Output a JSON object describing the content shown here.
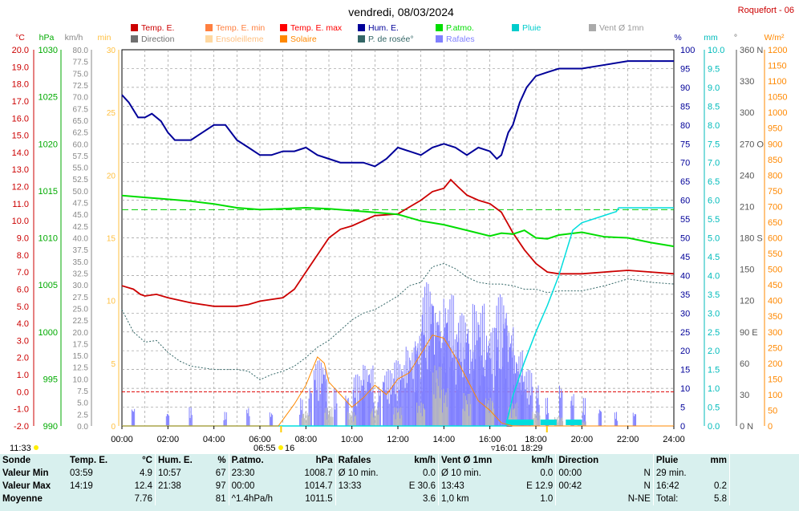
{
  "title": "vendredi, 08/03/2024",
  "station": "Roquefort - 06",
  "legend": [
    {
      "label": "Temp. E.",
      "color": "#cc0000"
    },
    {
      "label": "Temp. E. min",
      "color": "#ff8040"
    },
    {
      "label": "Temp. E. max",
      "color": "#ff0000"
    },
    {
      "label": "Hum. E.",
      "color": "#000099"
    },
    {
      "label": "P.atmo.",
      "color": "#00dd00"
    },
    {
      "label": "Pluie",
      "color": "#00cccc"
    },
    {
      "label": "Vent Ø 1mn",
      "color": "#aaaaaa"
    },
    {
      "label": "Direction",
      "color": "#707070"
    },
    {
      "label": "Ensoleilleme",
      "color": "#ffd8a0"
    },
    {
      "label": "Solaire",
      "color": "#ff8800"
    },
    {
      "label": "P. de rosée°",
      "color": "#336666"
    },
    {
      "label": "Rafales",
      "color": "#8080ff"
    }
  ],
  "axis_units": {
    "temp": "°C",
    "press": "hPa",
    "wind": "km/h",
    "min": "min",
    "hum": "%",
    "rain": "mm",
    "dir": "°",
    "solar": "W/m²"
  },
  "axes": {
    "temp_ticks": [
      "20.0",
      "19.0",
      "18.0",
      "17.0",
      "16.0",
      "15.0",
      "14.0",
      "13.0",
      "12.0",
      "11.0",
      "10.0",
      "9.0",
      "8.0",
      "7.0",
      "6.0",
      "5.0",
      "4.0",
      "3.0",
      "2.0",
      "1.0",
      "0.0",
      "-1.0",
      "-2.0"
    ],
    "press_ticks": [
      "1030",
      "1025",
      "1020",
      "1015",
      "1010",
      "1005",
      "1000",
      "995",
      "990"
    ],
    "wind_ticks": [
      "80.0",
      "77.5",
      "75.0",
      "72.5",
      "70.0",
      "67.5",
      "65.0",
      "62.5",
      "60.0",
      "57.5",
      "55.0",
      "52.5",
      "50.0",
      "47.5",
      "45.0",
      "42.5",
      "40.0",
      "37.5",
      "35.0",
      "32.5",
      "30.0",
      "27.5",
      "25.0",
      "22.5",
      "20.0",
      "17.5",
      "15.0",
      "12.5",
      "10.0",
      "7.5",
      "5.0",
      "2.5",
      "0.0"
    ],
    "min_ticks": [
      "30",
      "25",
      "20",
      "15",
      "10",
      "5",
      "0"
    ],
    "hum_ticks": [
      "100",
      "95",
      "90",
      "85",
      "80",
      "75",
      "70",
      "65",
      "60",
      "55",
      "50",
      "45",
      "40",
      "35",
      "30",
      "25",
      "20",
      "15",
      "10",
      "5",
      "0"
    ],
    "rain_ticks": [
      "10.0",
      "9.5",
      "9.0",
      "8.5",
      "8.0",
      "7.5",
      "7.0",
      "6.5",
      "6.0",
      "5.5",
      "5.0",
      "4.5",
      "4.0",
      "3.5",
      "3.0",
      "2.5",
      "2.0",
      "1.5",
      "1.0",
      "0.5",
      "0.0"
    ],
    "dir_ticks": [
      "360 N",
      "330",
      "300",
      "270 O",
      "240",
      "210",
      "180 S",
      "150",
      "120",
      "90 E",
      "60",
      "30",
      "0 N"
    ],
    "solar_ticks": [
      "1200",
      "1150",
      "1100",
      "1050",
      "1000",
      "950",
      "900",
      "850",
      "800",
      "750",
      "700",
      "650",
      "600",
      "550",
      "500",
      "450",
      "400",
      "350",
      "300",
      "250",
      "200",
      "150",
      "100",
      "50",
      "0"
    ],
    "x_ticks": [
      "00:00",
      "02:00",
      "04:00",
      "06:00",
      "08:00",
      "10:00",
      "12:00",
      "14:00",
      "16:00",
      "18:00",
      "20:00",
      "22:00",
      "24:00"
    ]
  },
  "sun_marks": {
    "moon": "11:33",
    "sunrise": "06:55",
    "sunrise_min": "16",
    "solar_noon": "16:01",
    "sunset": "18:29"
  },
  "chart_data": {
    "type": "line",
    "x_range_hours": [
      0,
      24
    ],
    "series": [
      {
        "name": "Temp. E.",
        "axis": "temp",
        "points": [
          [
            0,
            6.2
          ],
          [
            0.5,
            6.0
          ],
          [
            0.8,
            5.7
          ],
          [
            1,
            5.6
          ],
          [
            1.5,
            5.7
          ],
          [
            2,
            5.5
          ],
          [
            3,
            5.2
          ],
          [
            4,
            5.0
          ],
          [
            5,
            5.0
          ],
          [
            5.5,
            5.1
          ],
          [
            6,
            5.3
          ],
          [
            7,
            5.5
          ],
          [
            7.5,
            6.0
          ],
          [
            8,
            7.0
          ],
          [
            8.5,
            8.0
          ],
          [
            9,
            9.0
          ],
          [
            9.5,
            9.5
          ],
          [
            10,
            9.7
          ],
          [
            10.5,
            10.0
          ],
          [
            11,
            10.3
          ],
          [
            12,
            10.4
          ],
          [
            12.5,
            10.8
          ],
          [
            13,
            11.2
          ],
          [
            13.5,
            11.7
          ],
          [
            14,
            11.9
          ],
          [
            14.3,
            12.4
          ],
          [
            14.6,
            12.0
          ],
          [
            15,
            11.5
          ],
          [
            15.5,
            11.2
          ],
          [
            16,
            11.0
          ],
          [
            16.5,
            10.5
          ],
          [
            17,
            9.3
          ],
          [
            17.5,
            8.3
          ],
          [
            18,
            7.5
          ],
          [
            18.5,
            7.0
          ],
          [
            19,
            6.9
          ],
          [
            20,
            6.9
          ],
          [
            21,
            7.0
          ],
          [
            22,
            7.1
          ],
          [
            23,
            7.0
          ],
          [
            24,
            6.9
          ]
        ]
      },
      {
        "name": "Hum. E.",
        "axis": "hum",
        "points": [
          [
            0,
            88
          ],
          [
            0.3,
            86
          ],
          [
            0.7,
            82
          ],
          [
            1,
            82
          ],
          [
            1.3,
            83
          ],
          [
            1.7,
            81
          ],
          [
            2,
            78
          ],
          [
            2.3,
            76
          ],
          [
            3,
            76
          ],
          [
            3.5,
            78
          ],
          [
            4,
            80
          ],
          [
            4.5,
            80
          ],
          [
            5,
            76
          ],
          [
            5.5,
            74
          ],
          [
            6,
            72
          ],
          [
            6.5,
            72
          ],
          [
            7,
            73
          ],
          [
            7.5,
            73
          ],
          [
            8,
            74
          ],
          [
            8.5,
            72
          ],
          [
            9,
            71
          ],
          [
            9.5,
            70
          ],
          [
            10,
            70
          ],
          [
            10.5,
            70
          ],
          [
            11,
            69
          ],
          [
            11.5,
            71
          ],
          [
            12,
            74
          ],
          [
            12.5,
            73
          ],
          [
            13,
            72
          ],
          [
            13.5,
            74
          ],
          [
            14,
            75
          ],
          [
            14.5,
            74
          ],
          [
            15,
            72
          ],
          [
            15.5,
            74
          ],
          [
            16,
            73
          ],
          [
            16.3,
            71
          ],
          [
            16.5,
            72
          ],
          [
            16.8,
            78
          ],
          [
            17,
            80
          ],
          [
            17.3,
            86
          ],
          [
            17.6,
            90
          ],
          [
            18,
            93
          ],
          [
            18.5,
            94
          ],
          [
            19,
            95
          ],
          [
            20,
            95
          ],
          [
            21,
            96
          ],
          [
            22,
            97
          ],
          [
            23,
            97
          ],
          [
            24,
            97
          ]
        ]
      },
      {
        "name": "P.atmo.",
        "axis": "press",
        "points": [
          [
            0,
            1014.5
          ],
          [
            1,
            1014.3
          ],
          [
            2,
            1014.1
          ],
          [
            3,
            1013.9
          ],
          [
            4,
            1013.6
          ],
          [
            5,
            1013.2
          ],
          [
            6,
            1013.0
          ],
          [
            7,
            1013.1
          ],
          [
            8,
            1013.2
          ],
          [
            9,
            1013.1
          ],
          [
            10,
            1012.9
          ],
          [
            11,
            1012.7
          ],
          [
            12,
            1012.5
          ],
          [
            13,
            1011.8
          ],
          [
            14,
            1011.4
          ],
          [
            15,
            1010.8
          ],
          [
            16,
            1010.2
          ],
          [
            16.5,
            1010.5
          ],
          [
            17,
            1010.4
          ],
          [
            17.5,
            1010.8
          ],
          [
            18,
            1010.0
          ],
          [
            18.5,
            1009.9
          ],
          [
            19,
            1010.3
          ],
          [
            20,
            1010.6
          ],
          [
            21,
            1010.1
          ],
          [
            22,
            1010.0
          ],
          [
            23,
            1009.5
          ],
          [
            24,
            1009.1
          ]
        ]
      },
      {
        "name": "P. de rosée°",
        "axis": "temp",
        "points": [
          [
            0,
            4.8
          ],
          [
            0.5,
            3.5
          ],
          [
            1,
            2.9
          ],
          [
            1.5,
            3.0
          ],
          [
            2,
            2.3
          ],
          [
            2.5,
            1.8
          ],
          [
            3,
            1.5
          ],
          [
            4,
            1.3
          ],
          [
            5,
            1.3
          ],
          [
            5.5,
            1.2
          ],
          [
            6,
            0.7
          ],
          [
            6.5,
            1.0
          ],
          [
            7,
            1.2
          ],
          [
            7.5,
            1.5
          ],
          [
            8,
            2.0
          ],
          [
            8.5,
            2.6
          ],
          [
            9,
            3.0
          ],
          [
            9.5,
            3.6
          ],
          [
            10,
            4.2
          ],
          [
            10.5,
            4.6
          ],
          [
            11,
            4.8
          ],
          [
            11.5,
            5.2
          ],
          [
            12,
            5.6
          ],
          [
            12.5,
            6.2
          ],
          [
            13,
            6.4
          ],
          [
            13.5,
            7.3
          ],
          [
            14,
            7.5
          ],
          [
            14.5,
            7.2
          ],
          [
            15,
            6.7
          ],
          [
            15.5,
            6.4
          ],
          [
            16,
            6.3
          ],
          [
            16.5,
            6.3
          ],
          [
            17,
            6.2
          ],
          [
            17.5,
            6.0
          ],
          [
            18,
            6.0
          ],
          [
            18.5,
            5.8
          ],
          [
            19,
            5.9
          ],
          [
            20,
            5.9
          ],
          [
            21,
            6.2
          ],
          [
            22,
            6.6
          ],
          [
            23,
            6.4
          ],
          [
            24,
            6.3
          ]
        ]
      },
      {
        "name": "Pluie",
        "axis": "rain",
        "points": [
          [
            0,
            0
          ],
          [
            16.7,
            0
          ],
          [
            17,
            0.8
          ],
          [
            17.5,
            1.7
          ],
          [
            18,
            2.5
          ],
          [
            18.5,
            3.2
          ],
          [
            19,
            4.0
          ],
          [
            19.3,
            4.6
          ],
          [
            19.6,
            5.2
          ],
          [
            20,
            5.4
          ],
          [
            21,
            5.6
          ],
          [
            21.5,
            5.7
          ],
          [
            21.6,
            5.8
          ],
          [
            24,
            5.8
          ]
        ]
      },
      {
        "name": "Solaire",
        "axis": "solar",
        "points": [
          [
            0,
            0
          ],
          [
            6.8,
            0
          ],
          [
            7,
            20
          ],
          [
            7.5,
            70
          ],
          [
            8,
            130
          ],
          [
            8.5,
            220
          ],
          [
            8.8,
            200
          ],
          [
            9,
            140
          ],
          [
            9.5,
            100
          ],
          [
            10,
            60
          ],
          [
            10.5,
            90
          ],
          [
            11,
            130
          ],
          [
            11.5,
            100
          ],
          [
            12,
            150
          ],
          [
            12.5,
            170
          ],
          [
            13,
            230
          ],
          [
            13.5,
            290
          ],
          [
            14,
            280
          ],
          [
            14.5,
            220
          ],
          [
            15,
            150
          ],
          [
            15.5,
            80
          ],
          [
            16,
            50
          ],
          [
            16.5,
            10
          ],
          [
            17,
            0
          ],
          [
            24,
            0
          ]
        ]
      }
    ],
    "gusts_kmh": [
      [
        0.5,
        4
      ],
      [
        2,
        3
      ],
      [
        3,
        4
      ],
      [
        4.5,
        3
      ],
      [
        5.5,
        4
      ],
      [
        6.5,
        3
      ],
      [
        7.8,
        6
      ],
      [
        8.2,
        9
      ],
      [
        8.6,
        14
      ],
      [
        8.9,
        10
      ],
      [
        9.3,
        8
      ],
      [
        9.8,
        7
      ],
      [
        10.3,
        11
      ],
      [
        10.7,
        13
      ],
      [
        11.2,
        9
      ],
      [
        11.6,
        12
      ],
      [
        12.1,
        14
      ],
      [
        12.6,
        17
      ],
      [
        13.0,
        20
      ],
      [
        13.3,
        30.6
      ],
      [
        13.6,
        26
      ],
      [
        13.9,
        22
      ],
      [
        14.2,
        28
      ],
      [
        14.5,
        19
      ],
      [
        14.8,
        24
      ],
      [
        15.1,
        18
      ],
      [
        15.5,
        26
      ],
      [
        15.8,
        15
      ],
      [
        16.1,
        21
      ],
      [
        16.5,
        28
      ],
      [
        16.8,
        22
      ],
      [
        17.2,
        16
      ],
      [
        17.6,
        12
      ],
      [
        18.1,
        9
      ],
      [
        18.5,
        6
      ],
      [
        19.1,
        9
      ],
      [
        19.6,
        7
      ],
      [
        20.1,
        6
      ],
      [
        20.8,
        4
      ],
      [
        21.5,
        3
      ],
      [
        22.3,
        3
      ]
    ],
    "wind_avg_kmh": [
      [
        8,
        3
      ],
      [
        9,
        4
      ],
      [
        10,
        3
      ],
      [
        11,
        4
      ],
      [
        12,
        4
      ],
      [
        13,
        5
      ],
      [
        13.7,
        12.9
      ],
      [
        14,
        8
      ],
      [
        15,
        7
      ],
      [
        16,
        6
      ],
      [
        17,
        5
      ],
      [
        18,
        3
      ],
      [
        19,
        2
      ],
      [
        20,
        1
      ]
    ],
    "rain_rate_marks_hours": [
      [
        16.7,
        17.9
      ],
      [
        18.2,
        18.9
      ],
      [
        19.3,
        20.0
      ]
    ]
  },
  "summary": {
    "headers": {
      "sonde": "Sonde",
      "temp": "Temp. E.",
      "temp_u": "°C",
      "hum": "Hum. E.",
      "hum_u": "%",
      "press": "P.atmo.",
      "press_u": "hPa",
      "gust": "Rafales",
      "gust_u": "km/h",
      "wind": "Vent Ø 1mn",
      "wind_u": "km/h",
      "dir": "Direction",
      "rain": "Pluie",
      "rain_u": "mm"
    },
    "rows": [
      {
        "label": "Valeur Min",
        "temp_t": "03:59",
        "temp_v": "4.9",
        "hum_t": "10:57",
        "hum_v": "67",
        "press_t": "23:30",
        "press_v": "1008.7",
        "gust_t": "Ø 10 min.",
        "gust_v": "0.0",
        "wind_t": "Ø 10 min.",
        "wind_v": "0.0",
        "dir_t": "00:00",
        "dir_v": "N",
        "rain_t": "29 min.",
        "rain_v": ""
      },
      {
        "label": "Valeur Max",
        "temp_t": "14:19",
        "temp_v": "12.4",
        "hum_t": "21:38",
        "hum_v": "97",
        "press_t": "00:00",
        "press_v": "1014.7",
        "gust_t": "13:33",
        "gust_v": "E 30.6",
        "wind_t": "13:43",
        "wind_v": "E 12.9",
        "dir_t": "00:42",
        "dir_v": "N",
        "rain_t": "16:42",
        "rain_v": "0.2"
      },
      {
        "label": "Moyenne",
        "temp_t": "",
        "temp_v": "7.76",
        "hum_t": "",
        "hum_v": "81",
        "press_t": "^1.4hPa/h",
        "press_v": "1011.5",
        "gust_t": "",
        "gust_v": "3.6",
        "wind_t": "1,0 km",
        "wind_v": "1.0",
        "dir_t": "",
        "dir_v": "N-NE",
        "rain_t": "Total:",
        "rain_v": "5.8"
      }
    ]
  }
}
